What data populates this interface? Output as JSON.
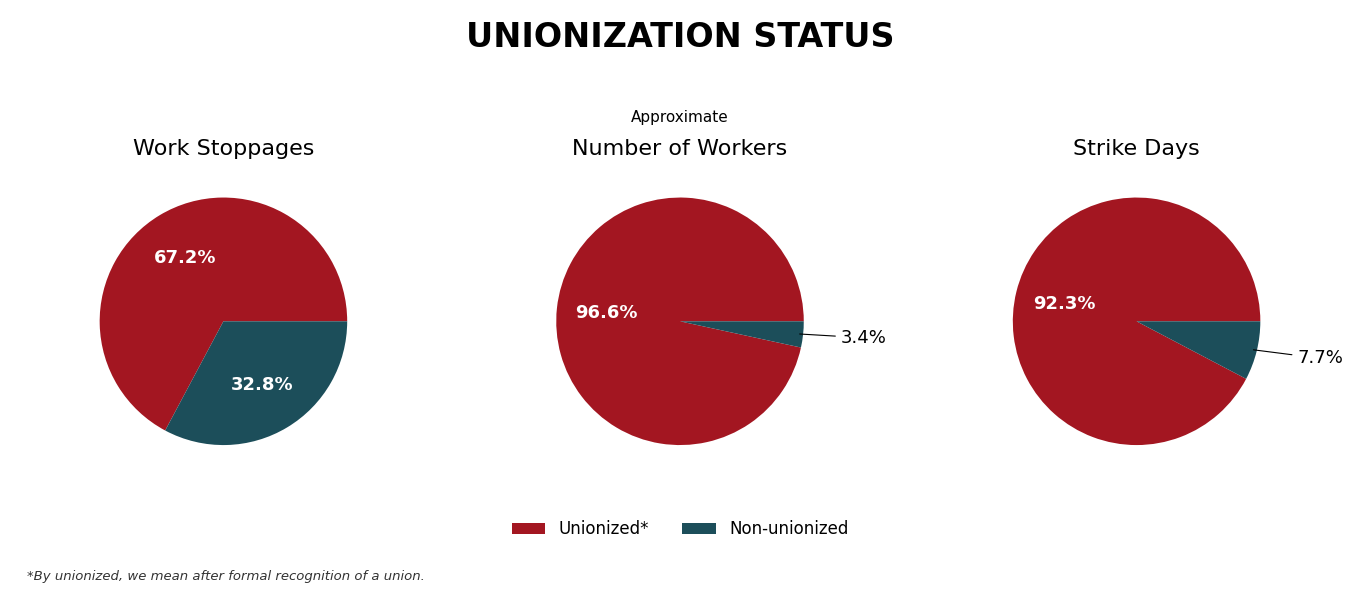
{
  "title": "UNIONIZATION STATUS",
  "footnote": "*By unionized, we mean after formal recognition of a union.",
  "legend": "lower center",
  "chart_data": [
    {
      "type": "pie",
      "title": "Work Stoppages",
      "categories": [
        "Unionized*",
        "Non-unionized"
      ],
      "values": [
        67.2,
        32.8
      ],
      "value_labels": [
        "67.2%",
        "32.8%"
      ],
      "colors": [
        "#A31621",
        "#1C4E5A"
      ],
      "data_labels": true
    },
    {
      "type": "pie",
      "subtitle": "Approximate",
      "title": "Number of Workers",
      "categories": [
        "Unionized*",
        "Non-unionized"
      ],
      "values": [
        96.6,
        3.4
      ],
      "value_labels": [
        "96.6%",
        "3.4%"
      ],
      "colors": [
        "#A31621",
        "#1C4E5A"
      ],
      "data_labels": true
    },
    {
      "type": "pie",
      "title": "Strike Days",
      "categories": [
        "Unionized*",
        "Non-unionized"
      ],
      "values": [
        92.3,
        7.7
      ],
      "value_labels": [
        "92.3%",
        "7.7%"
      ],
      "colors": [
        "#A31621",
        "#1C4E5A"
      ],
      "data_labels": true
    }
  ]
}
